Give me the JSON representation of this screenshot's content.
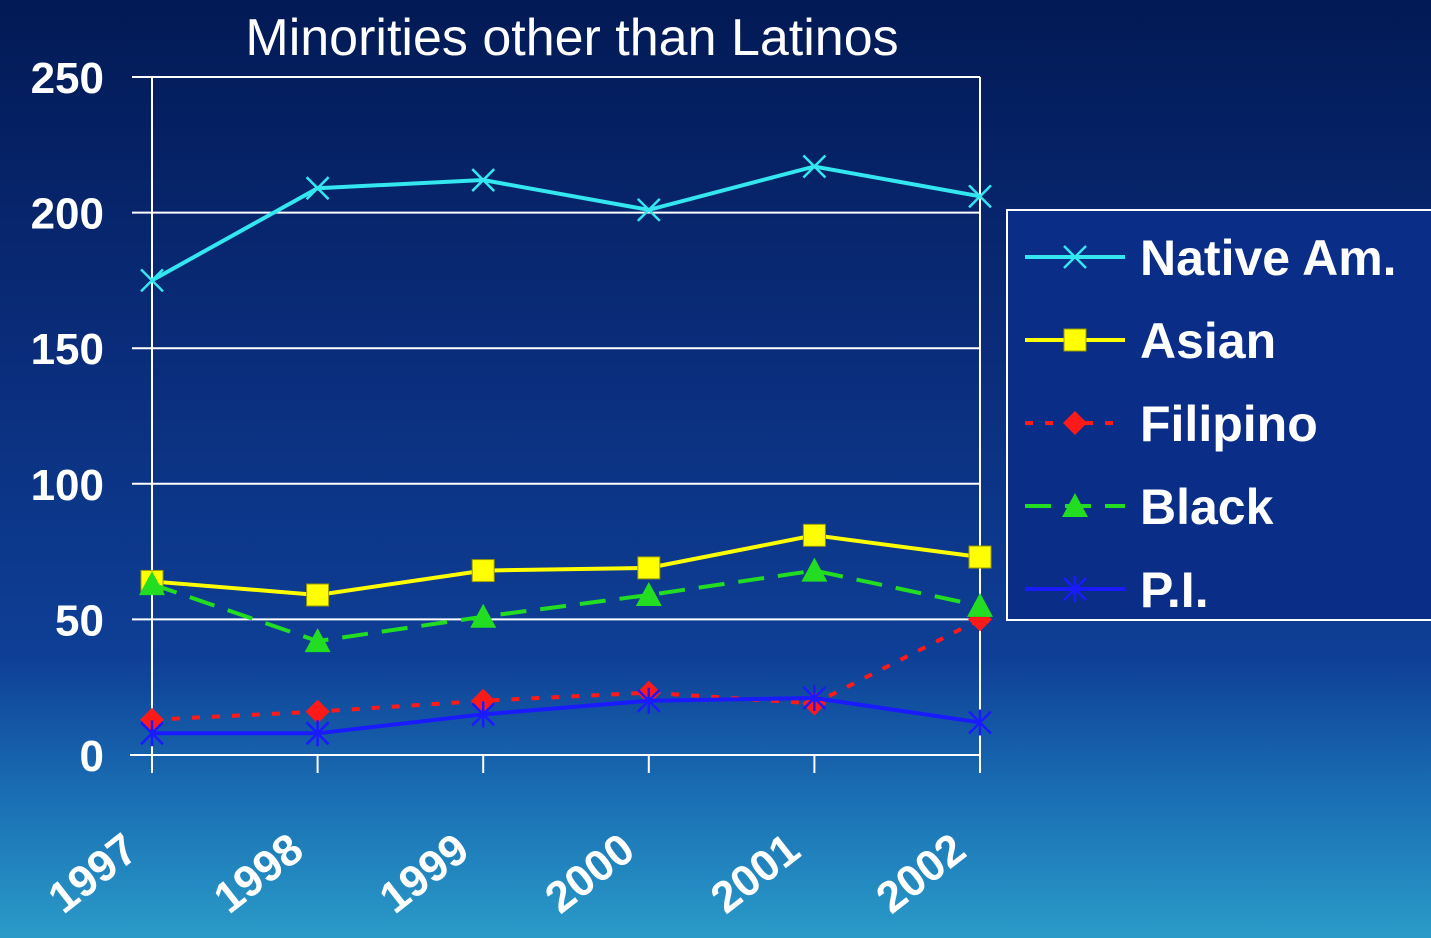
{
  "chart_data": {
    "type": "line",
    "title": "Minorities other than Latinos",
    "xlabel": "",
    "ylabel": "",
    "categories": [
      "1997",
      "1998",
      "1999",
      "2000",
      "2001",
      "2002"
    ],
    "ylim": [
      0,
      250
    ],
    "yticks": [
      "0",
      "50",
      "100",
      "150",
      "200",
      "250"
    ],
    "grid": true,
    "legend_position": "right",
    "series": [
      {
        "name": "Native Am.",
        "values": [
          175,
          209,
          212,
          201,
          217,
          206
        ],
        "color": "#33e6f0",
        "marker": "x",
        "dash": "solid"
      },
      {
        "name": "Asian",
        "values": [
          64,
          59,
          68,
          69,
          81,
          73
        ],
        "color": "#ffff00",
        "marker": "square",
        "dash": "solid"
      },
      {
        "name": "Filipino",
        "values": [
          13,
          16,
          20,
          23,
          19,
          50
        ],
        "color": "#ff1a1a",
        "marker": "diamond",
        "dash": "dotted"
      },
      {
        "name": "Black",
        "values": [
          63,
          42,
          51,
          59,
          68,
          55
        ],
        "color": "#22dd22",
        "marker": "triangle",
        "dash": "dashed"
      },
      {
        "name": "P.I.",
        "values": [
          8,
          8,
          15,
          20,
          21,
          12
        ],
        "color": "#1a1aff",
        "marker": "star",
        "dash": "solid"
      }
    ]
  }
}
